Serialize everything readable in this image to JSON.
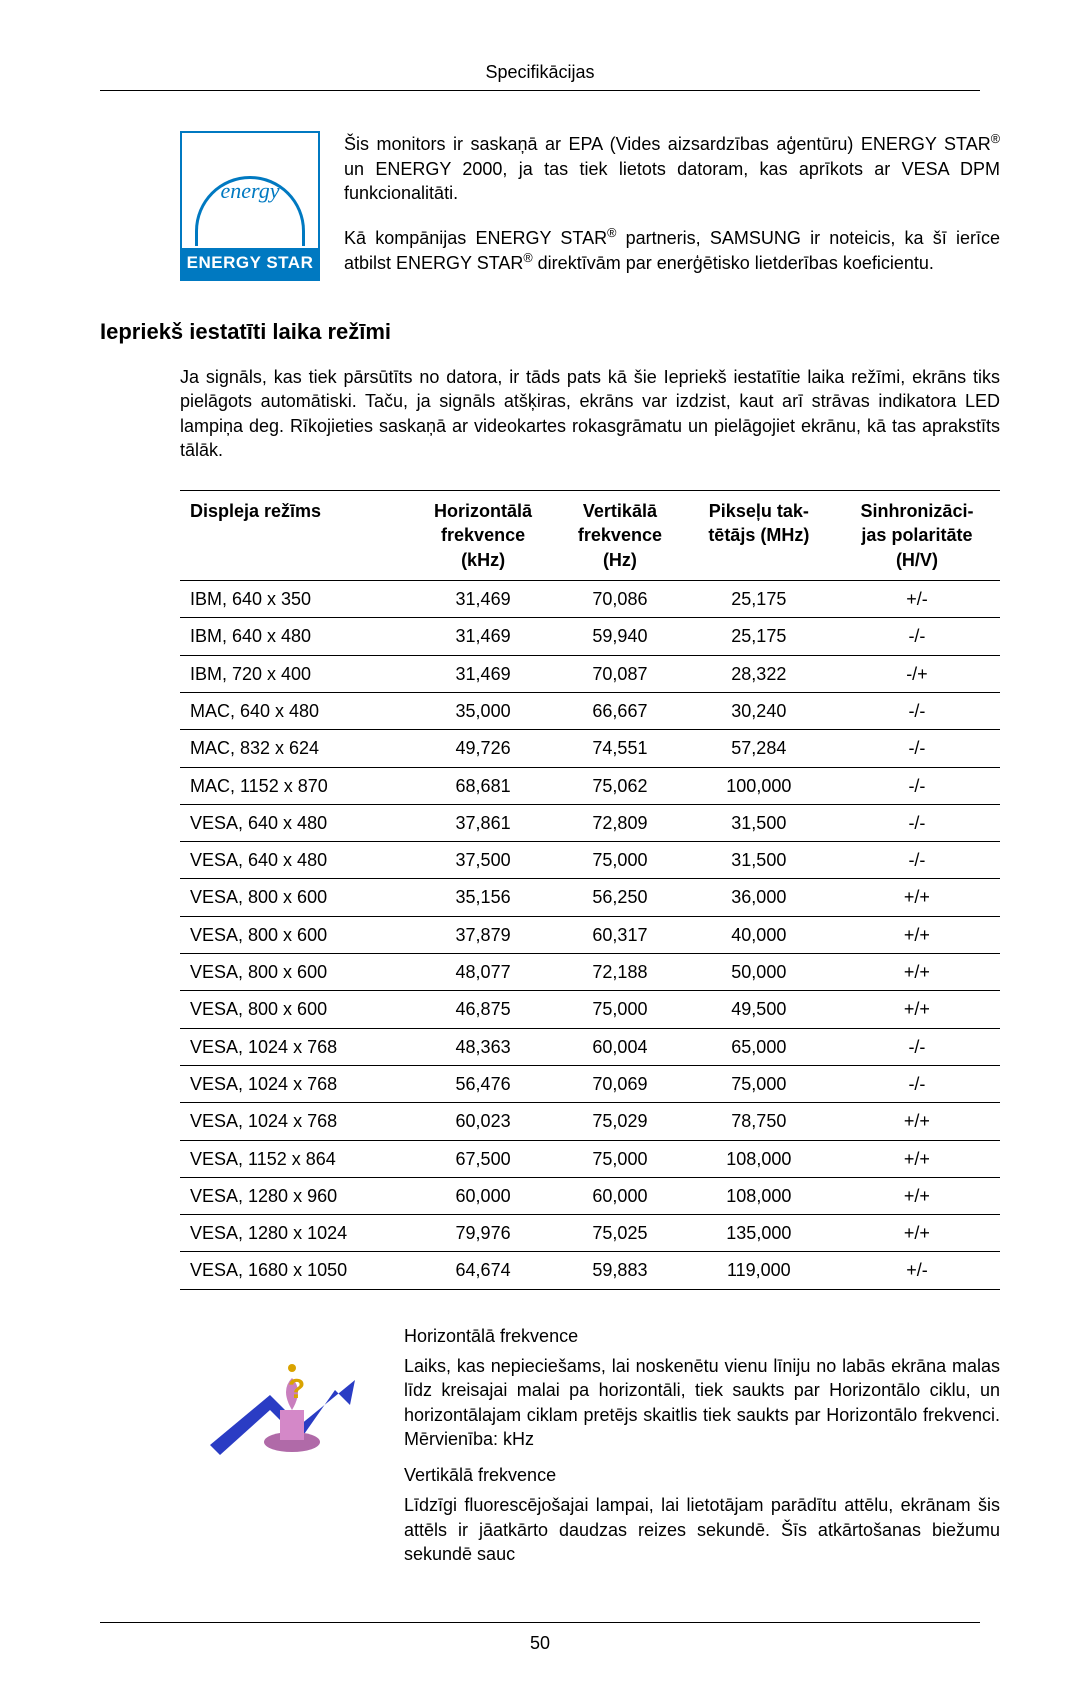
{
  "header": {
    "title": "Specifikācijas"
  },
  "energyLogo": {
    "script": "energy",
    "label": "ENERGY STAR"
  },
  "energyText": {
    "para1": "Šis monitors ir saskaņā ar EPA (Vides aizsardzības aģentūru) ENERGY STAR® un ENERGY 2000, ja tas tiek lietots datoram, kas aprīkots ar VESA DPM funkcionalitāti.",
    "para2": "Kā kompānijas ENERGY STAR® partneris, SAMSUNG ir noteicis, ka šī ierīce atbilst ENERGY STAR® direktīvām par enerģētisko lietderības koeficientu."
  },
  "section": {
    "heading": "Iepriekš iestatīti laika režīmi",
    "intro": "Ja signāls, kas tiek pārsūtīts no datora, ir tāds pats kā šie Iepriekš iestatītie laika režīmi, ekrāns tiks pielāgots automātiski. Taču, ja signāls atšķiras, ekrāns var izdzist, kaut arī strāvas indikatora LED lampiņa deg. Rīkojieties saskaņā ar videokartes rokasgrāmatu un pielāgojiet ekrānu, kā tas aprakstīts tālāk."
  },
  "table": {
    "columns": [
      "Displeja režīms",
      "Horizontālā frekvence (kHz)",
      "Vertikālā frekvence (Hz)",
      "Pikseļu taktētājs (MHz)",
      "Sinhronizācijas polaritāte (H/V)"
    ],
    "rows": [
      [
        "IBM, 640 x 350",
        "31,469",
        "70,086",
        "25,175",
        "+/-"
      ],
      [
        "IBM, 640 x 480",
        "31,469",
        "59,940",
        "25,175",
        "-/-"
      ],
      [
        "IBM, 720 x 400",
        "31,469",
        "70,087",
        "28,322",
        "-/+"
      ],
      [
        "MAC, 640 x 480",
        "35,000",
        "66,667",
        "30,240",
        "-/-"
      ],
      [
        "MAC, 832 x 624",
        "49,726",
        "74,551",
        "57,284",
        "-/-"
      ],
      [
        "MAC, 1152 x 870",
        "68,681",
        "75,062",
        "100,000",
        "-/-"
      ],
      [
        "VESA, 640 x 480",
        "37,861",
        "72,809",
        "31,500",
        "-/-"
      ],
      [
        "VESA, 640 x 480",
        "37,500",
        "75,000",
        "31,500",
        "-/-"
      ],
      [
        "VESA, 800 x 600",
        "35,156",
        "56,250",
        "36,000",
        "+/+"
      ],
      [
        "VESA, 800 x 600",
        "37,879",
        "60,317",
        "40,000",
        "+/+"
      ],
      [
        "VESA, 800 x 600",
        "48,077",
        "72,188",
        "50,000",
        "+/+"
      ],
      [
        "VESA, 800 x 600",
        "46,875",
        "75,000",
        "49,500",
        "+/+"
      ],
      [
        "VESA, 1024 x 768",
        "48,363",
        "60,004",
        "65,000",
        "-/-"
      ],
      [
        "VESA, 1024 x 768",
        "56,476",
        "70,069",
        "75,000",
        "-/-"
      ],
      [
        "VESA, 1024 x 768",
        "60,023",
        "75,029",
        "78,750",
        "+/+"
      ],
      [
        "VESA, 1152 x 864",
        "67,500",
        "75,000",
        "108,000",
        "+/+"
      ],
      [
        "VESA, 1280 x 960",
        "60,000",
        "60,000",
        "108,000",
        "+/+"
      ],
      [
        "VESA, 1280 x 1024",
        "79,976",
        "75,025",
        "135,000",
        "+/+"
      ],
      [
        "VESA, 1680 x 1050",
        "64,674",
        "59,883",
        "119,000",
        "+/-"
      ]
    ]
  },
  "notes": {
    "h1": "Horizontālā frekvence",
    "p1": "Laiks, kas nepieciešams, lai noskenētu vienu līniju no labās ekrāna malas līdz kreisajai malai pa horizontāli, tiek saukts par Horizontālo ciklu, un horizontālajam ciklam pretējs skaitlis tiek saukts par Horizontālo frekvenci. Mērvienība: kHz",
    "h2": "Vertikālā frekvence",
    "p2": "Līdzīgi fluorescējošajai lampai, lai lietotājam parādītu attēlu, ekrānam šis attēls ir jāatkārto daudzas reizes sekundē. Šīs atkārtošanas biežumu sekundē sauc"
  },
  "footer": {
    "pageNumber": "50"
  }
}
